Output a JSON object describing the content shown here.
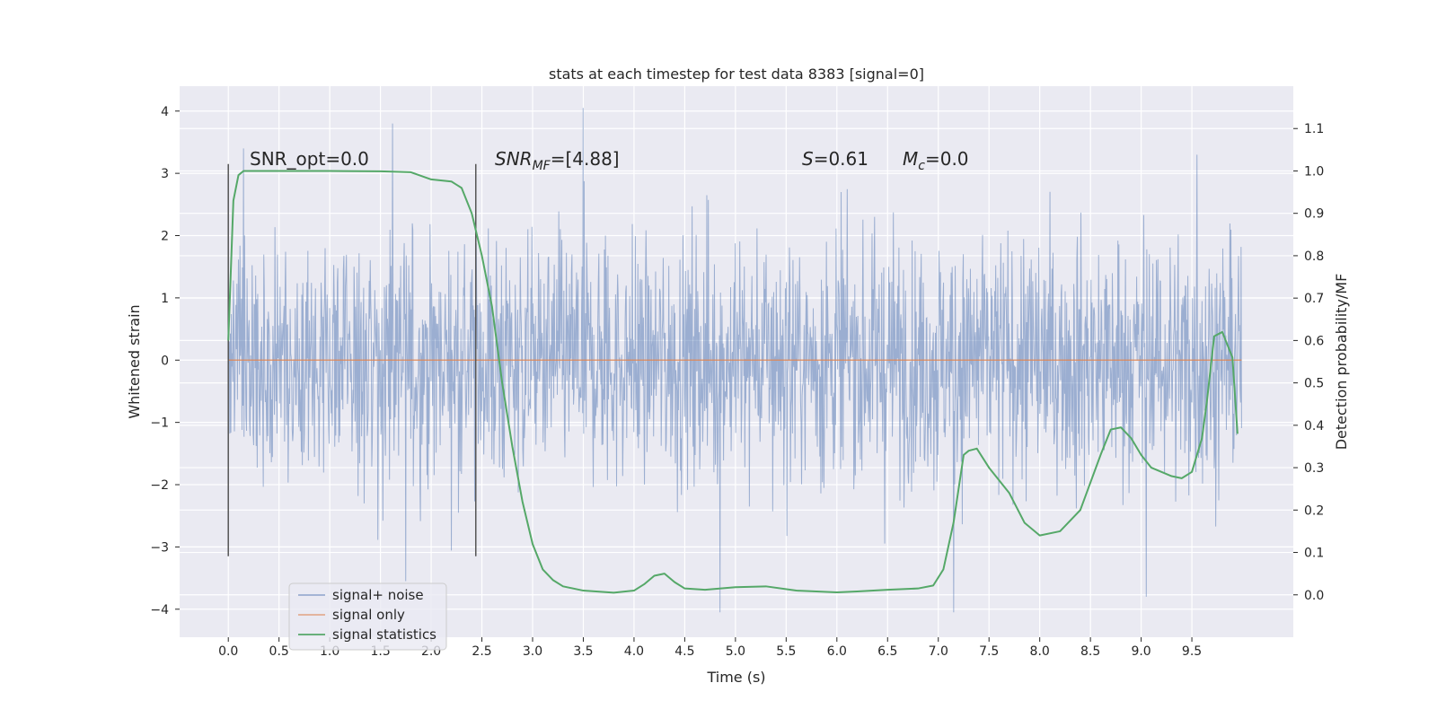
{
  "chart_data": {
    "type": "line",
    "title": "stats at each timestep for test data 8383 [signal=0]",
    "xlabel": "Time (s)",
    "ylabel": "Whitened strain",
    "y2label": "Detection probability/MF",
    "xlim": [
      -0.48,
      10.5
    ],
    "ylim": [
      -4.45,
      4.4
    ],
    "y2lim": [
      -0.1,
      1.2
    ],
    "xticks": [
      0.0,
      0.5,
      1.0,
      1.5,
      2.0,
      2.5,
      3.0,
      3.5,
      4.0,
      4.5,
      5.0,
      5.5,
      6.0,
      6.5,
      7.0,
      7.5,
      8.0,
      8.5,
      9.0,
      9.5
    ],
    "xtick_labels": [
      "0.0",
      "0.5",
      "1.0",
      "1.5",
      "2.0",
      "2.5",
      "3.0",
      "3.5",
      "4.0",
      "4.5",
      "5.0",
      "5.5",
      "6.0",
      "6.5",
      "7.0",
      "7.5",
      "8.0",
      "8.5",
      "9.0",
      "9.5"
    ],
    "yticks": [
      4,
      3,
      2,
      1,
      0,
      -1,
      -2,
      -3,
      -4
    ],
    "ytick_labels": [
      "4",
      "3",
      "2",
      "1",
      "0",
      "−1",
      "−2",
      "−3",
      "−4"
    ],
    "y2ticks": [
      1.1,
      1.0,
      0.9,
      0.8,
      0.7,
      0.6,
      0.5,
      0.4,
      0.3,
      0.2,
      0.1,
      0.0
    ],
    "y2tick_labels": [
      "1.1",
      "1.0",
      "0.9",
      "0.8",
      "0.7",
      "0.6",
      "0.5",
      "0.4",
      "0.3",
      "0.2",
      "0.1",
      "0.0"
    ],
    "grid": true,
    "legend_position": "lower-left",
    "series": [
      {
        "name": "signal+ noise",
        "color": "#4c72b0",
        "kind": "noise",
        "x_range": [
          0.0,
          9.99
        ],
        "typical_amplitude": 1.0,
        "extremes": [
          {
            "x": 0.15,
            "y": 3.4
          },
          {
            "x": 1.62,
            "y": 3.8
          },
          {
            "x": 3.5,
            "y": 4.05
          },
          {
            "x": 9.55,
            "y": 3.3
          },
          {
            "x": 4.85,
            "y": -4.05
          },
          {
            "x": 7.15,
            "y": -4.05
          },
          {
            "x": 1.75,
            "y": -3.55
          },
          {
            "x": 9.05,
            "y": -3.8
          }
        ]
      },
      {
        "name": "signal only",
        "color": "#dd8452",
        "x": [
          0.0,
          9.99
        ],
        "y": [
          0.0,
          0.0
        ]
      },
      {
        "name": "signal statistics",
        "color": "#55a868",
        "axis": "right",
        "x": [
          0.0,
          0.05,
          0.1,
          0.15,
          0.2,
          0.3,
          0.5,
          1.0,
          1.5,
          1.8,
          2.0,
          2.2,
          2.3,
          2.4,
          2.5,
          2.6,
          2.7,
          2.8,
          2.9,
          3.0,
          3.1,
          3.2,
          3.3,
          3.5,
          3.8,
          4.0,
          4.1,
          4.2,
          4.3,
          4.4,
          4.5,
          4.7,
          5.0,
          5.3,
          5.6,
          6.0,
          6.2,
          6.5,
          6.8,
          6.95,
          7.05,
          7.15,
          7.25,
          7.3,
          7.38,
          7.5,
          7.7,
          7.85,
          8.0,
          8.2,
          8.4,
          8.6,
          8.7,
          8.8,
          8.9,
          9.0,
          9.1,
          9.3,
          9.4,
          9.5,
          9.6,
          9.65,
          9.72,
          9.8,
          9.9,
          9.95
        ],
        "y": [
          0.6,
          0.93,
          0.99,
          1.0,
          1.0,
          1.0,
          1.0,
          1.0,
          0.999,
          0.997,
          0.98,
          0.975,
          0.96,
          0.9,
          0.8,
          0.68,
          0.5,
          0.35,
          0.22,
          0.12,
          0.06,
          0.035,
          0.02,
          0.01,
          0.005,
          0.01,
          0.025,
          0.045,
          0.05,
          0.03,
          0.015,
          0.012,
          0.018,
          0.02,
          0.01,
          0.006,
          0.008,
          0.012,
          0.015,
          0.022,
          0.06,
          0.17,
          0.33,
          0.34,
          0.345,
          0.3,
          0.24,
          0.17,
          0.14,
          0.15,
          0.2,
          0.33,
          0.39,
          0.395,
          0.37,
          0.33,
          0.3,
          0.28,
          0.275,
          0.29,
          0.37,
          0.46,
          0.61,
          0.62,
          0.56,
          0.38
        ]
      }
    ],
    "annotations": [
      {
        "type": "vline",
        "x": 0.0,
        "y_from": -3.15,
        "y_to": 3.15,
        "color": "#555555"
      },
      {
        "type": "vline",
        "x": 2.44,
        "y_from": -3.15,
        "y_to": 3.15,
        "color": "#555555"
      }
    ],
    "text_labels": {
      "snr_opt": "SNR_opt=0.0",
      "snr_mf_main": "SNR",
      "snr_mf_sub": "MF",
      "snr_mf_rest": "=[4.88]",
      "s_main": "S",
      "s_rest": "=0.61",
      "mc_main": "M",
      "mc_sub": "c",
      "mc_rest": "=0.0"
    }
  }
}
